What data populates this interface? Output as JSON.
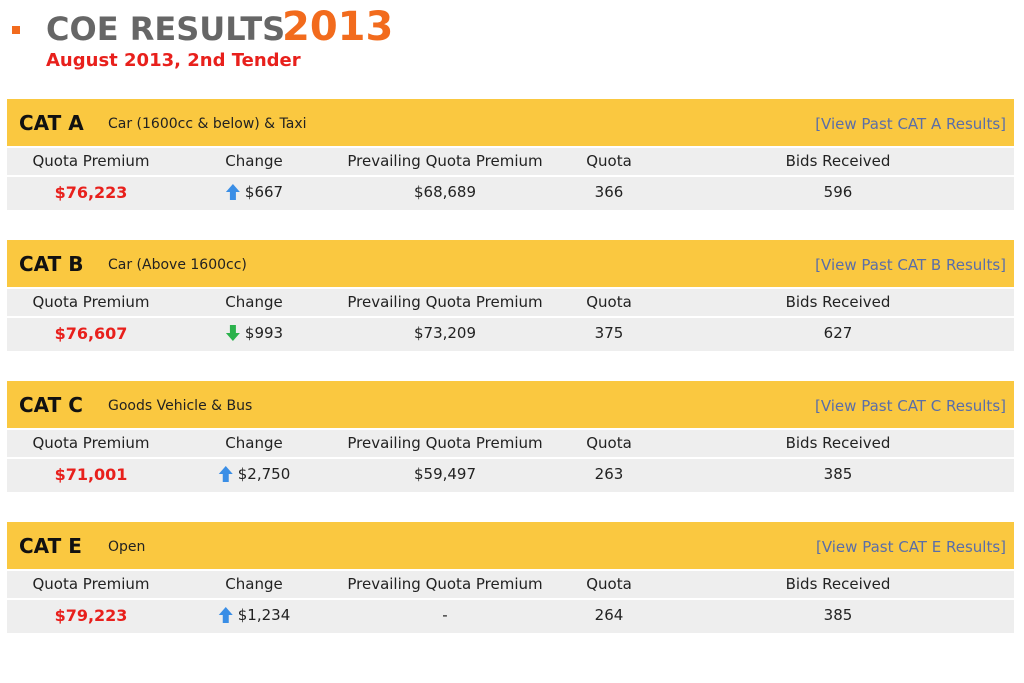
{
  "header": {
    "title": "COE RESULTS",
    "year": "2013",
    "subtitle": "August 2013, 2nd Tender"
  },
  "columns": [
    "Quota Premium",
    "Change",
    "Prevailing Quota Premium",
    "Quota",
    "Bids Received"
  ],
  "categories": [
    {
      "code": "CAT A",
      "description": "Car (1600cc & below) & Taxi",
      "link": "[View Past CAT A Results]",
      "quota_premium": "$76,223",
      "change_direction": "up",
      "change": "$667",
      "prevailing": "$68,689",
      "quota": "366",
      "bids": "596"
    },
    {
      "code": "CAT B",
      "description": "Car (Above 1600cc)",
      "link": "[View Past CAT B Results]",
      "quota_premium": "$76,607",
      "change_direction": "down",
      "change": "$993",
      "prevailing": "$73,209",
      "quota": "375",
      "bids": "627"
    },
    {
      "code": "CAT C",
      "description": "Goods Vehicle & Bus",
      "link": "[View Past CAT C Results]",
      "quota_premium": "$71,001",
      "change_direction": "up",
      "change": "$2,750",
      "prevailing": "$59,497",
      "quota": "263",
      "bids": "385"
    },
    {
      "code": "CAT E",
      "description": "Open",
      "link": "[View Past CAT E Results]",
      "quota_premium": "$79,223",
      "change_direction": "up",
      "change": "$1,234",
      "prevailing": "-",
      "quota": "264",
      "bids": "385"
    }
  ]
}
